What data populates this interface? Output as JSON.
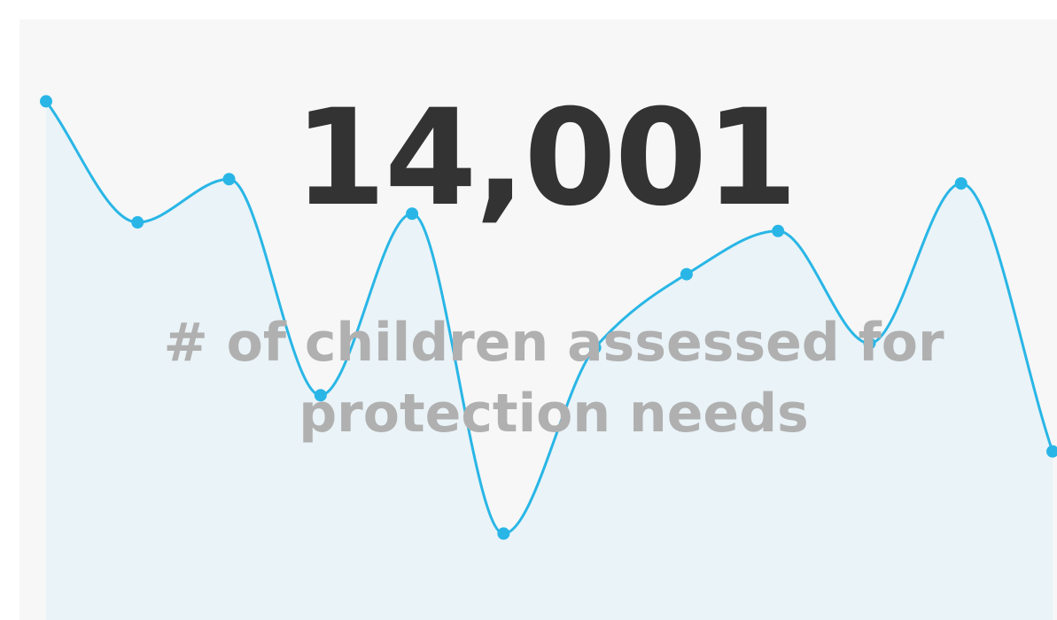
{
  "kpi": {
    "value": "14,001",
    "label": "# of children assessed for protection needs"
  },
  "colors": {
    "background": "#f7f7f7",
    "value_text": "#333333",
    "label_text": "#b0b0b0",
    "line": "#29b6e6",
    "area_fill": "#eaf3f7"
  },
  "chart_data": {
    "type": "area",
    "series": [
      {
        "values": [
          100,
          72,
          82,
          32,
          74,
          0,
          43,
          60,
          70,
          44,
          81,
          19
        ]
      }
    ],
    "ylim": [
      -20,
      105
    ],
    "grid": false,
    "legend": "none"
  }
}
